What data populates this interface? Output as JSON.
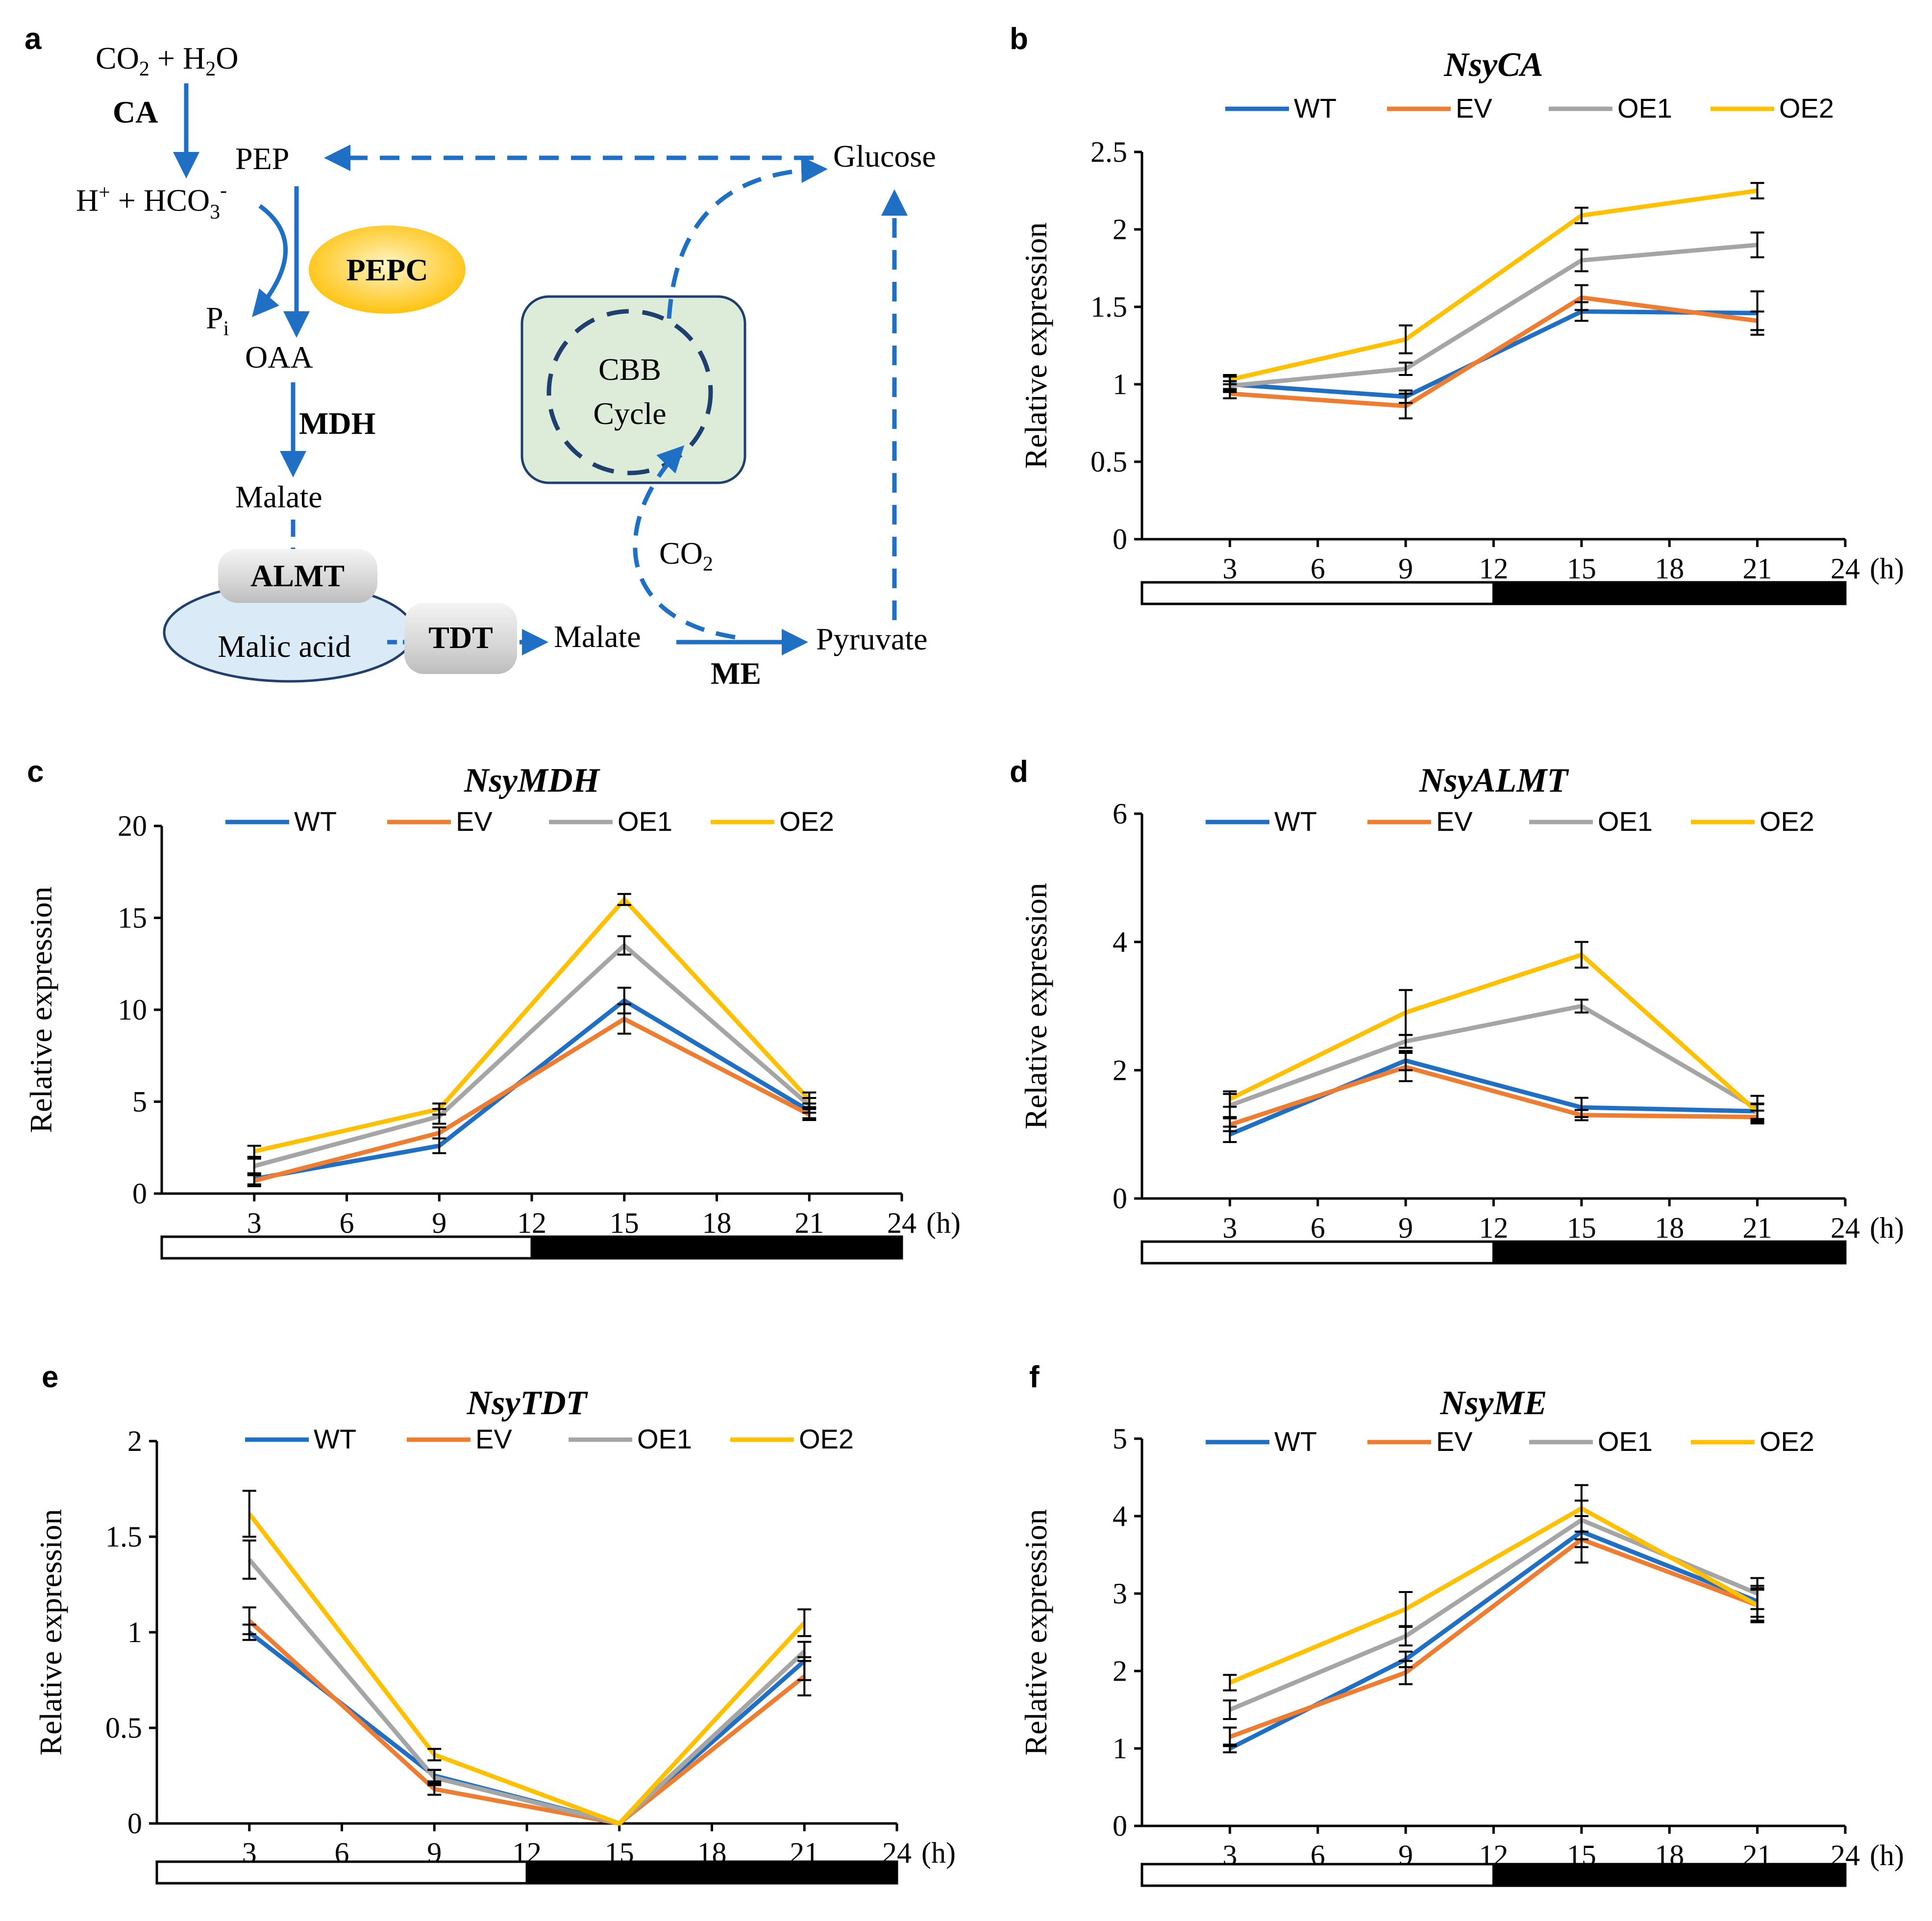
{
  "colors": {
    "WT": "#1f6fc5",
    "EV": "#ee7d31",
    "OE1": "#a5a5a5",
    "OE2": "#ffc000",
    "arrow": "#1f6fc5",
    "pepc": "#ffc000",
    "cbb_fill": "#dcecd9",
    "cbb_border": "#1f3f6e",
    "vacuole": "#dbeaf7"
  },
  "diagram": {
    "letter": "a",
    "co2_h2o_left": "CO",
    "co2_h2o_sub1": "2",
    "co2_h2o_mid": " + H",
    "co2_h2o_sub2": "2",
    "co2_h2o_right": "O",
    "ca": "CA",
    "pep": "PEP",
    "glucose": "Glucose",
    "h_left": "H",
    "h_sup": "+",
    "hco3_mid": " + HCO",
    "hco3_sub": "3",
    "hco3_sup": "-",
    "pepc": "PEPC",
    "pi": "P",
    "pi_sub": "i",
    "oaa": "OAA",
    "mdh": "MDH",
    "malate_top": "Malate",
    "cbb_line1": "CBB",
    "cbb_line2": "Cycle",
    "co2_text": "CO",
    "co2_sub": "2",
    "almt": "ALMT",
    "malic_acid": "Malic acid",
    "tdt": "TDT",
    "malate_bottom": "Malate",
    "pyruvate": "Pyruvate",
    "me": "ME"
  },
  "legend": [
    "WT",
    "EV",
    "OE1",
    "OE2"
  ],
  "chart_data": [
    {
      "letter": "b",
      "type": "line",
      "title": "NsyCA",
      "xlabel": "",
      "ylabel": "Relative expression",
      "hour_unit": "(h)",
      "x": [
        3,
        9,
        15,
        21
      ],
      "xticks": [
        "3",
        "6",
        "9",
        "12",
        "15",
        "18",
        "21",
        "24"
      ],
      "ylim": [
        0,
        2.5
      ],
      "yticks": [
        "0",
        "0.5",
        "1",
        "1.5",
        "2",
        "2.5"
      ],
      "ytick_values": [
        0,
        0.5,
        1,
        1.5,
        2,
        2.5
      ],
      "light_dark": {
        "light_hours": [
          0,
          12
        ],
        "dark_hours": [
          12,
          24
        ]
      },
      "series": [
        {
          "name": "WT",
          "values": [
            1.0,
            0.92,
            1.47,
            1.46
          ],
          "errors": [
            0.05,
            0.04,
            0.06,
            0.14
          ]
        },
        {
          "name": "EV",
          "values": [
            0.94,
            0.86,
            1.56,
            1.41
          ],
          "errors": [
            0.03,
            0.08,
            0.08,
            0.06
          ]
        },
        {
          "name": "OE1",
          "values": [
            0.99,
            1.1,
            1.8,
            1.9
          ],
          "errors": [
            0.03,
            0.04,
            0.07,
            0.08
          ]
        },
        {
          "name": "OE2",
          "values": [
            1.03,
            1.29,
            2.09,
            2.25
          ],
          "errors": [
            0.03,
            0.09,
            0.05,
            0.05
          ]
        }
      ]
    },
    {
      "letter": "c",
      "type": "line",
      "title": "NsyMDH",
      "xlabel": "",
      "ylabel": "Relative expression",
      "hour_unit": "(h)",
      "x": [
        3,
        9,
        15,
        21
      ],
      "xticks": [
        "3",
        "6",
        "9",
        "12",
        "15",
        "18",
        "21",
        "24"
      ],
      "ylim": [
        0,
        20
      ],
      "yticks": [
        "0",
        "5",
        "10",
        "15",
        "20"
      ],
      "ytick_values": [
        0,
        5,
        10,
        15,
        20
      ],
      "light_dark": {
        "light_hours": [
          0,
          12
        ],
        "dark_hours": [
          12,
          24
        ]
      },
      "series": [
        {
          "name": "WT",
          "values": [
            0.8,
            2.6,
            10.5,
            4.5
          ],
          "errors": [
            0.3,
            0.4,
            0.7,
            0.4
          ]
        },
        {
          "name": "EV",
          "values": [
            0.7,
            3.3,
            9.5,
            4.3
          ],
          "errors": [
            0.3,
            0.3,
            0.8,
            0.3
          ]
        },
        {
          "name": "OE1",
          "values": [
            1.5,
            4.2,
            13.5,
            4.8
          ],
          "errors": [
            0.4,
            0.4,
            0.5,
            0.4
          ]
        },
        {
          "name": "OE2",
          "values": [
            2.3,
            4.6,
            16.0,
            5.1
          ],
          "errors": [
            0.3,
            0.3,
            0.3,
            0.4
          ]
        }
      ]
    },
    {
      "letter": "d",
      "type": "line",
      "title": "NsyALMT",
      "xlabel": "",
      "ylabel": "Relative expression",
      "hour_unit": "(h)",
      "x": [
        3,
        9,
        15,
        21
      ],
      "xticks": [
        "3",
        "6",
        "9",
        "12",
        "15",
        "18",
        "21",
        "24"
      ],
      "ylim": [
        0,
        6
      ],
      "yticks": [
        "0",
        "2",
        "4",
        "6"
      ],
      "ytick_values": [
        0,
        2,
        4,
        6
      ],
      "light_dark": {
        "light_hours": [
          0,
          12
        ],
        "dark_hours": [
          12,
          24
        ]
      },
      "series": [
        {
          "name": "WT",
          "values": [
            1.0,
            2.15,
            1.42,
            1.36
          ],
          "errors": [
            0.12,
            0.15,
            0.15,
            0.12
          ]
        },
        {
          "name": "EV",
          "values": [
            1.15,
            2.05,
            1.3,
            1.27
          ],
          "errors": [
            0.1,
            0.22,
            0.08,
            0.1
          ]
        },
        {
          "name": "OE1",
          "values": [
            1.45,
            2.45,
            3.0,
            1.4
          ],
          "errors": [
            0.18,
            0.1,
            0.1,
            0.2
          ]
        },
        {
          "name": "OE2",
          "values": [
            1.55,
            2.9,
            3.8,
            1.35
          ],
          "errors": [
            0.12,
            0.35,
            0.2,
            0.12
          ]
        }
      ]
    },
    {
      "letter": "e",
      "type": "line",
      "title": "NsyTDT",
      "xlabel": "",
      "ylabel": "Relative expression",
      "hour_unit": "(h)",
      "x": [
        3,
        9,
        15,
        21
      ],
      "xticks": [
        "3",
        "6",
        "9",
        "12",
        "15",
        "18",
        "21",
        "24"
      ],
      "ylim": [
        0,
        2
      ],
      "yticks": [
        "0",
        "0.5",
        "1",
        "1.5",
        "2"
      ],
      "ytick_values": [
        0,
        0.5,
        1,
        1.5,
        2
      ],
      "light_dark": {
        "light_hours": [
          0,
          12
        ],
        "dark_hours": [
          12,
          24
        ]
      },
      "series": [
        {
          "name": "WT",
          "values": [
            1.0,
            0.25,
            0.0,
            0.85
          ],
          "errors": [
            0.04,
            0.03,
            0.0,
            0.1
          ]
        },
        {
          "name": "EV",
          "values": [
            1.06,
            0.18,
            0.0,
            0.77
          ],
          "errors": [
            0.07,
            0.03,
            0.0,
            0.1
          ]
        },
        {
          "name": "OE1",
          "values": [
            1.38,
            0.24,
            0.0,
            0.9
          ],
          "errors": [
            0.1,
            0.04,
            0.0,
            0.05
          ]
        },
        {
          "name": "OE2",
          "values": [
            1.62,
            0.36,
            0.0,
            1.05
          ],
          "errors": [
            0.12,
            0.03,
            0.0,
            0.07
          ]
        }
      ]
    },
    {
      "letter": "f",
      "type": "line",
      "title": "NsyME",
      "xlabel": "",
      "ylabel": "Relative expression",
      "hour_unit": "(h)",
      "x": [
        3,
        9,
        15,
        21
      ],
      "xticks": [
        "3",
        "6",
        "9",
        "12",
        "15",
        "18",
        "21",
        "24"
      ],
      "ylim": [
        0,
        5
      ],
      "yticks": [
        "0",
        "1",
        "2",
        "3",
        "4",
        "5"
      ],
      "ytick_values": [
        0,
        1,
        2,
        3,
        4,
        5
      ],
      "light_dark": {
        "light_hours": [
          0,
          12
        ],
        "dark_hours": [
          12,
          24
        ]
      },
      "series": [
        {
          "name": "WT",
          "values": [
            1.0,
            2.15,
            3.8,
            2.9
          ],
          "errors": [
            0.05,
            0.1,
            0.2,
            0.2
          ]
        },
        {
          "name": "EV",
          "values": [
            1.15,
            1.98,
            3.7,
            2.85
          ],
          "errors": [
            0.12,
            0.15,
            0.3,
            0.2
          ]
        },
        {
          "name": "OE1",
          "values": [
            1.5,
            2.45,
            3.95,
            3.0
          ],
          "errors": [
            0.12,
            0.12,
            0.25,
            0.2
          ]
        },
        {
          "name": "OE2",
          "values": [
            1.85,
            2.8,
            4.1,
            2.85
          ],
          "errors": [
            0.1,
            0.22,
            0.3,
            0.22
          ]
        }
      ]
    }
  ]
}
